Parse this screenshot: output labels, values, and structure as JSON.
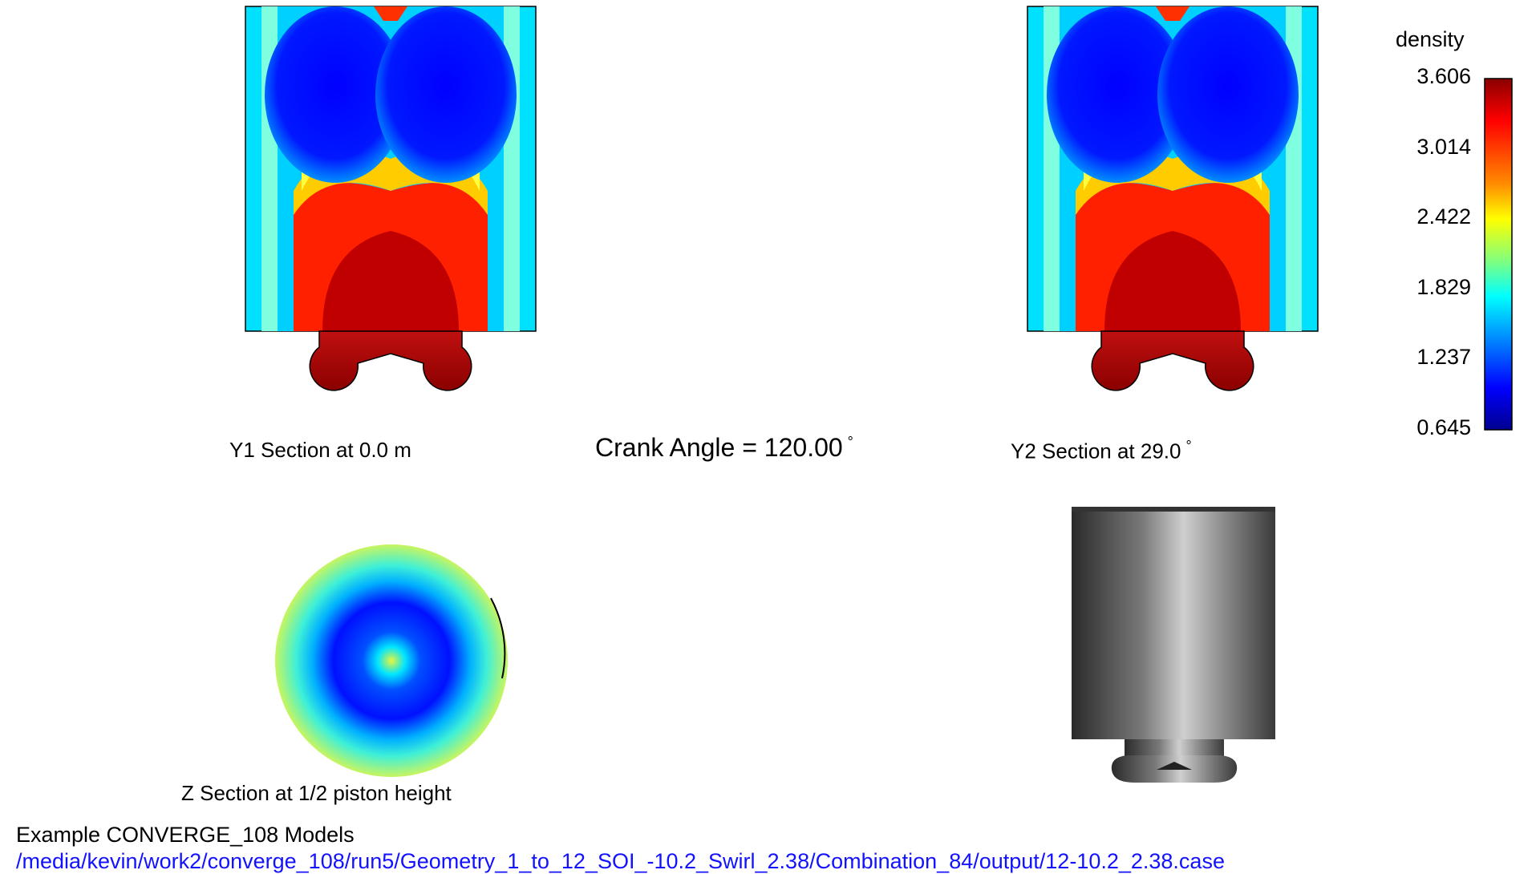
{
  "sections": {
    "y1_label": "Y1 Section at 0.0 m",
    "y2_label": "Y2 Section at 29.0",
    "y2_unit": "°",
    "z_label": "Z Section at 1/2 piston height"
  },
  "crank": {
    "label": "Crank Angle = 120.00",
    "unit": "°"
  },
  "legend": {
    "title": "density",
    "ticks": [
      "3.606",
      "3.014",
      "2.422",
      "1.829",
      "1.237",
      "0.645"
    ],
    "min_color": "#00008f",
    "max_color": "#8b0000"
  },
  "footer": {
    "model": "Example CONVERGE_108 Models",
    "path": "/media/kevin/work2/converge_108/run5/Geometry_1_to_12_SOI_-10.2_Swirl_2.38/Combination_84/output/12-10.2_2.38.case",
    "path_color": "#1212ff"
  },
  "icons": {
    "y1_plot": "density-contour-section-y1",
    "y2_plot": "density-contour-section-y2",
    "z_plot": "density-contour-section-z",
    "cylinder": "cylinder-3d-view"
  }
}
